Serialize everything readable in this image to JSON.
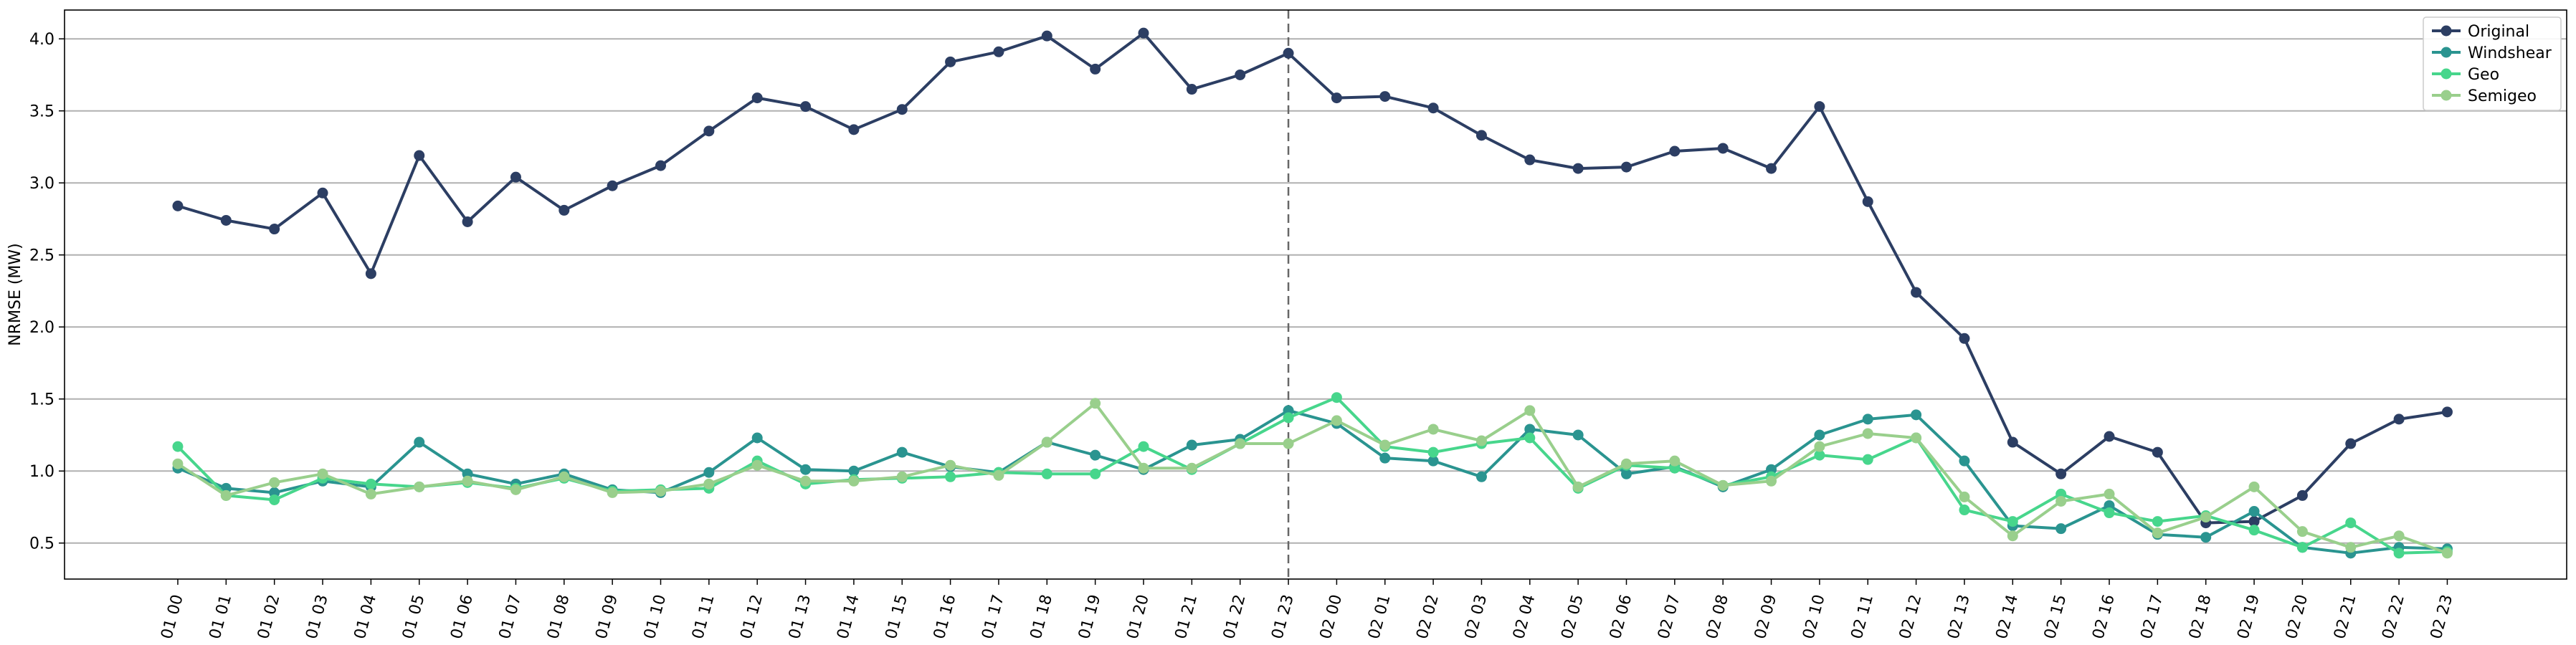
{
  "chart_data": {
    "type": "line",
    "title": "",
    "xlabel": "",
    "ylabel": "NRMSE (MW)",
    "ylim": [
      0.25,
      4.2
    ],
    "yticks": [
      "0.5",
      "1.0",
      "1.5",
      "2.0",
      "2.5",
      "3.0",
      "3.5",
      "4.0"
    ],
    "grid": "horizontal",
    "legend_position": "top-right",
    "vline_at": "01 23",
    "categories": [
      "01 00",
      "01 01",
      "01 02",
      "01 03",
      "01 04",
      "01 05",
      "01 06",
      "01 07",
      "01 08",
      "01 09",
      "01 10",
      "01 11",
      "01 12",
      "01 13",
      "01 14",
      "01 15",
      "01 16",
      "01 17",
      "01 18",
      "01 19",
      "01 20",
      "01 21",
      "01 22",
      "01 23",
      "02 00",
      "02 01",
      "02 02",
      "02 03",
      "02 04",
      "02 05",
      "02 06",
      "02 07",
      "02 08",
      "02 09",
      "02 10",
      "02 11",
      "02 12",
      "02 13",
      "02 14",
      "02 15",
      "02 16",
      "02 17",
      "02 18",
      "02 19",
      "02 20",
      "02 21",
      "02 22",
      "02 23"
    ],
    "series": [
      {
        "name": "Original",
        "color": "#2c3e63",
        "values": [
          2.84,
          2.74,
          2.68,
          2.93,
          2.37,
          3.19,
          2.73,
          3.04,
          2.81,
          2.98,
          3.12,
          3.36,
          3.59,
          3.53,
          3.37,
          3.51,
          3.84,
          3.91,
          4.02,
          3.79,
          4.04,
          3.65,
          3.75,
          3.9,
          3.59,
          3.6,
          3.52,
          3.33,
          3.16,
          3.1,
          3.11,
          3.22,
          3.24,
          3.1,
          3.53,
          2.87,
          2.24,
          1.92,
          1.2,
          0.98,
          1.24,
          1.13,
          0.64,
          0.65,
          0.83,
          1.19,
          1.36,
          1.41
        ]
      },
      {
        "name": "Windshear",
        "color": "#2a9490",
        "values": [
          1.02,
          0.88,
          0.85,
          0.93,
          0.89,
          1.2,
          0.98,
          0.91,
          0.98,
          0.87,
          0.85,
          0.99,
          1.23,
          1.01,
          1.0,
          1.13,
          1.03,
          0.99,
          1.2,
          1.11,
          1.01,
          1.18,
          1.22,
          1.42,
          1.33,
          1.09,
          1.07,
          0.96,
          1.29,
          1.25,
          0.98,
          1.03,
          0.89,
          1.01,
          1.25,
          1.36,
          1.39,
          1.07,
          0.62,
          0.6,
          0.76,
          0.56,
          0.54,
          0.72,
          0.47,
          0.43,
          0.47,
          0.46
        ]
      },
      {
        "name": "Geo",
        "color": "#47d68c",
        "values": [
          1.17,
          0.83,
          0.8,
          0.95,
          0.91,
          0.89,
          0.92,
          0.88,
          0.95,
          0.86,
          0.87,
          0.88,
          1.07,
          0.91,
          0.94,
          0.95,
          0.96,
          0.99,
          0.98,
          0.98,
          1.17,
          1.01,
          1.19,
          1.37,
          1.51,
          1.17,
          1.13,
          1.19,
          1.23,
          0.88,
          1.04,
          1.02,
          0.9,
          0.96,
          1.11,
          1.08,
          1.23,
          0.73,
          0.65,
          0.84,
          0.71,
          0.65,
          0.69,
          0.59,
          0.47,
          0.64,
          0.43,
          0.44
        ]
      },
      {
        "name": "Semigeo",
        "color": "#99cf8c",
        "values": [
          1.05,
          0.83,
          0.92,
          0.98,
          0.84,
          0.89,
          0.93,
          0.87,
          0.96,
          0.85,
          0.86,
          0.91,
          1.04,
          0.93,
          0.93,
          0.96,
          1.04,
          0.97,
          1.2,
          1.47,
          1.02,
          1.02,
          1.19,
          1.19,
          1.35,
          1.18,
          1.29,
          1.21,
          1.42,
          0.89,
          1.05,
          1.07,
          0.9,
          0.93,
          1.17,
          1.26,
          1.23,
          0.82,
          0.55,
          0.79,
          0.84,
          0.57,
          0.68,
          0.89,
          0.58,
          0.47,
          0.55,
          0.43
        ]
      }
    ]
  }
}
